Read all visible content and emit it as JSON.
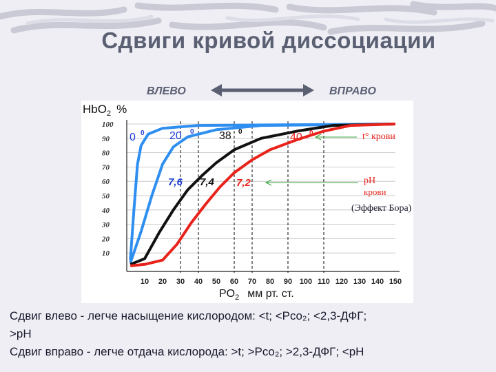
{
  "title": "Сдвиги  кривой  диссоциации",
  "directions": {
    "left": "ВЛЕВО",
    "right": "ВПРАВО"
  },
  "chart_data": {
    "type": "line",
    "ylabel": "HbO2  %",
    "ylabel_main": "HbO",
    "ylabel_sub": "2",
    "ylabel_unit": "%",
    "xlabel_main": "PO",
    "xlabel_sub": "2",
    "xlabel_unit": "мм рт. ст.",
    "xlim": [
      0,
      150
    ],
    "ylim": [
      0,
      100
    ],
    "x_ticks": [
      10,
      20,
      30,
      40,
      50,
      60,
      70,
      80,
      90,
      100,
      110,
      120,
      130,
      140,
      150
    ],
    "y_ticks": [
      100,
      90,
      80,
      70,
      60,
      50,
      40,
      30,
      20,
      10
    ],
    "vertical_dashed_lines_x": [
      30,
      40,
      60,
      70,
      90,
      110
    ],
    "series": [
      {
        "color": "#2f8ff0",
        "label_text": "0",
        "label_deg": "0",
        "points": [
          [
            2,
            5
          ],
          [
            4,
            40
          ],
          [
            6,
            72
          ],
          [
            8,
            85
          ],
          [
            12,
            93
          ],
          [
            20,
            97
          ],
          [
            40,
            99
          ],
          [
            150,
            100
          ]
        ]
      },
      {
        "color": "#2f8ff0",
        "label_text": "20",
        "label_deg": "0",
        "points": [
          [
            2,
            3
          ],
          [
            8,
            25
          ],
          [
            14,
            50
          ],
          [
            20,
            72
          ],
          [
            26,
            84
          ],
          [
            34,
            91
          ],
          [
            50,
            96
          ],
          [
            75,
            99
          ],
          [
            150,
            100
          ]
        ]
      },
      {
        "color": "#111111",
        "label_text": "38",
        "label_deg": "0",
        "points": [
          [
            2,
            2
          ],
          [
            10,
            6
          ],
          [
            18,
            24
          ],
          [
            26,
            40
          ],
          [
            34,
            54
          ],
          [
            42,
            64
          ],
          [
            50,
            73
          ],
          [
            60,
            82
          ],
          [
            75,
            90
          ],
          [
            95,
            95
          ],
          [
            115,
            99
          ],
          [
            150,
            100
          ]
        ]
      },
      {
        "color": "#e8231b",
        "label_text": "40",
        "label_deg": "0",
        "points": [
          [
            2,
            1
          ],
          [
            10,
            2
          ],
          [
            20,
            5
          ],
          [
            28,
            16
          ],
          [
            36,
            31
          ],
          [
            44,
            44
          ],
          [
            52,
            56
          ],
          [
            60,
            66
          ],
          [
            70,
            75
          ],
          [
            80,
            82
          ],
          [
            95,
            89
          ],
          [
            110,
            95
          ],
          [
            125,
            99
          ],
          [
            150,
            100
          ]
        ]
      }
    ],
    "ph_labels": [
      {
        "text": "7,6",
        "color": "#1f3fd6"
      },
      {
        "text": "7,4",
        "color": "#111111"
      },
      {
        "text": "7,2",
        "color": "#e8231b"
      }
    ],
    "annotations": [
      {
        "text": "t° крови",
        "color": "#e8231b"
      },
      {
        "text": "pH",
        "color": "#e8231b"
      },
      {
        "text": "крови",
        "color": "#e8231b"
      },
      {
        "text": "(Эффект Бора)",
        "color": "#1a1a2e"
      }
    ]
  },
  "bottom_text": {
    "line1": "Сдвиг влево - легче  насыщение  кислородом: <t; <Pco₂; <2,3-ДФГ;",
    "line2": ">pH",
    "line3": "Сдвиг вправо - легче  отдача  кислорода: >t; >Pco₂; >2,3-ДФГ; <pH"
  }
}
